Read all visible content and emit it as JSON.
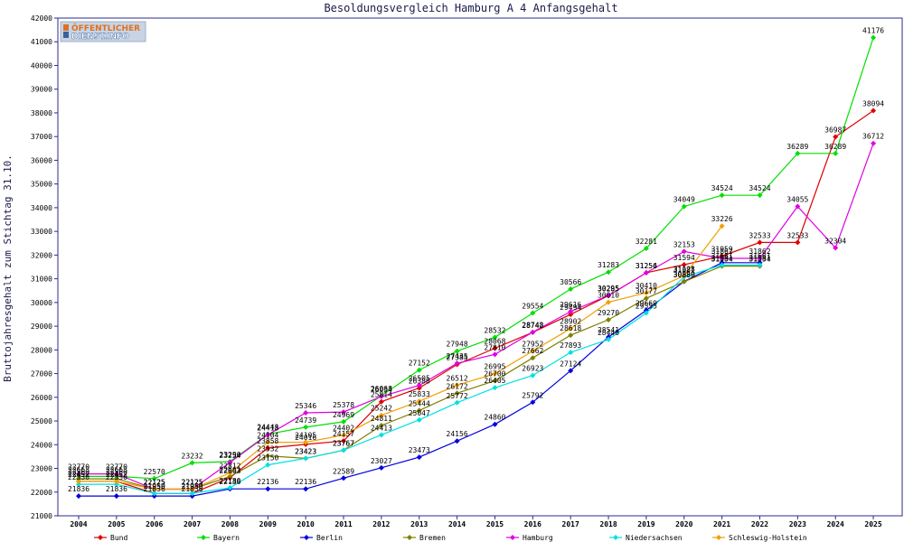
{
  "logo": {
    "line1": "ÖFFENTLICHER",
    "line2": "DIENST.INFO"
  },
  "chart_data": {
    "type": "line",
    "title": "Besoldungsvergleich Hamburg A 4 Anfangsgehalt",
    "ylabel": "Bruttojahresgehalt zum Stichtag 31.10.",
    "xlabel": "",
    "ylim": [
      21000,
      42000
    ],
    "yticks": [
      21000,
      22000,
      23000,
      24000,
      25000,
      26000,
      27000,
      28000,
      29000,
      30000,
      31000,
      32000,
      33000,
      34000,
      35000,
      36000,
      37000,
      38000,
      39000,
      40000,
      41000,
      42000
    ],
    "categories": [
      "2004",
      "2005",
      "2006",
      "2007",
      "2008",
      "2009",
      "2010",
      "2011",
      "2012",
      "2013",
      "2014",
      "2015",
      "2016",
      "2017",
      "2018",
      "2019",
      "2020",
      "2021",
      "2022",
      "2023",
      "2024",
      "2025"
    ],
    "grid": false,
    "legend_position": "bottom",
    "series": [
      {
        "name": "Bund",
        "color": "#e00000",
        "values": [
          22452,
          22452,
          21950,
          21950,
          22603,
          23858,
          24016,
          24157,
          25814,
          26388,
          27385,
          28068,
          28742,
          29494,
          30285,
          31256,
          31594,
          31959,
          32533,
          32533,
          36987,
          38094
        ]
      },
      {
        "name": "Bayern",
        "color": "#00e000",
        "values": [
          22663,
          22663,
          22570,
          23232,
          23290,
          24443,
          24739,
          24969,
          26068,
          27152,
          27948,
          28532,
          29554,
          30566,
          31283,
          32281,
          34049,
          34524,
          34524,
          36289,
          36289,
          41176
        ]
      },
      {
        "name": "Berlin",
        "color": "#0000e0",
        "values": [
          21836,
          21836,
          21836,
          21836,
          22136,
          22136,
          22136,
          22589,
          23027,
          23473,
          24156,
          24860,
          25792,
          27124,
          28541,
          29669,
          30889,
          31681,
          31681,
          null,
          null,
          null
        ]
      },
      {
        "name": "Bremen",
        "color": "#808000",
        "values": [
          22560,
          22560,
          22125,
          22125,
          22661,
          23532,
          23423,
          23767,
          24811,
          25444,
          26172,
          26700,
          27662,
          28618,
          29270,
          30177,
          30880,
          31534,
          31534,
          null,
          null,
          null
        ]
      },
      {
        "name": "Hamburg",
        "color": "#e000e0",
        "values": [
          22770,
          22770,
          22125,
          22125,
          23254,
          24418,
          25346,
          25378,
          26034,
          26505,
          27435,
          27810,
          28748,
          29616,
          30295,
          31254,
          32153,
          31862,
          31862,
          34055,
          32304,
          36712
        ]
      },
      {
        "name": "Niedersachsen",
        "color": "#00e0e0",
        "values": [
          22330,
          22330,
          21950,
          21950,
          22180,
          23150,
          23423,
          23767,
          24413,
          25047,
          25772,
          26405,
          26923,
          27893,
          28440,
          29555,
          31081,
          31581,
          31581,
          null,
          null,
          null
        ]
      },
      {
        "name": "Schleswig-Holstein",
        "color": "#f0a000",
        "values": [
          22452,
          22452,
          22125,
          22125,
          22812,
          24104,
          24105,
          24402,
          25242,
          25833,
          26512,
          26995,
          27952,
          28902,
          30010,
          30410,
          31128,
          33226,
          null,
          null,
          null,
          null
        ]
      }
    ]
  }
}
